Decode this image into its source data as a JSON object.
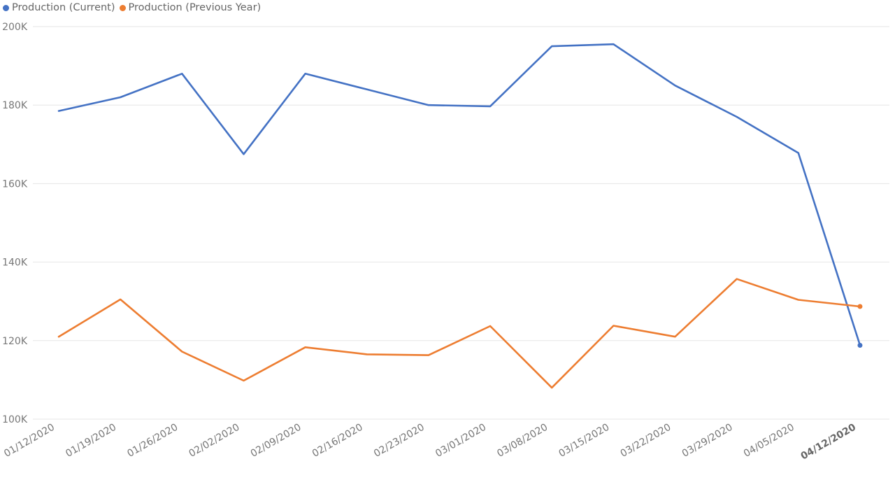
{
  "chart_data": {
    "type": "line",
    "x": [
      "01/12/2020",
      "01/19/2020",
      "01/26/2020",
      "02/02/2020",
      "02/09/2020",
      "02/16/2020",
      "02/23/2020",
      "03/01/2020",
      "03/08/2020",
      "03/15/2020",
      "03/22/2020",
      "03/29/2020",
      "04/05/2020",
      "04/12/2020"
    ],
    "series": [
      {
        "name": "Production (Current)",
        "color": "#4472C4",
        "values": [
          178500,
          182000,
          188000,
          167500,
          188000,
          184000,
          180000,
          179700,
          195000,
          195500,
          185000,
          177000,
          167800,
          118800
        ]
      },
      {
        "name": "Production (Previous Year)",
        "color": "#ED7D31",
        "values": [
          121000,
          130500,
          117200,
          109800,
          118300,
          116500,
          116300,
          123700,
          108000,
          123800,
          121000,
          135700,
          130400,
          128700
        ]
      }
    ],
    "yticks": [
      "100K",
      "120K",
      "140K",
      "160K",
      "180K",
      "200K"
    ],
    "ylim": [
      100000,
      200000
    ],
    "legend": "top-left",
    "grid": true
  }
}
